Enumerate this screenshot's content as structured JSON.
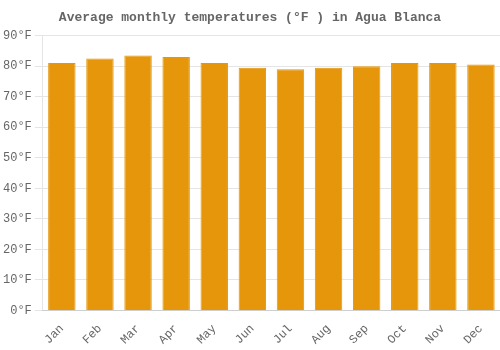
{
  "chart_data": {
    "type": "bar",
    "title": "Average monthly temperatures (°F ) in Agua Blanca",
    "categories": [
      "Jan",
      "Feb",
      "Mar",
      "Apr",
      "May",
      "Jun",
      "Jul",
      "Aug",
      "Sep",
      "Oct",
      "Nov",
      "Dec"
    ],
    "values": [
      81,
      82.5,
      83.5,
      83,
      81,
      79.5,
      79,
      79.5,
      80,
      81,
      81,
      80.5
    ],
    "color": "#e6960a",
    "ylim": [
      0,
      90
    ],
    "yticks": [
      {
        "value": 0,
        "label": "0°F"
      },
      {
        "value": 10,
        "label": "10°F"
      },
      {
        "value": 20,
        "label": "20°F"
      },
      {
        "value": 30,
        "label": "30°F"
      },
      {
        "value": 40,
        "label": "40°F"
      },
      {
        "value": 50,
        "label": "50°F"
      },
      {
        "value": 60,
        "label": "60°F"
      },
      {
        "value": 70,
        "label": "70°F"
      },
      {
        "value": 80,
        "label": "80°F"
      },
      {
        "value": 90,
        "label": "90°F"
      }
    ],
    "grid": true
  }
}
